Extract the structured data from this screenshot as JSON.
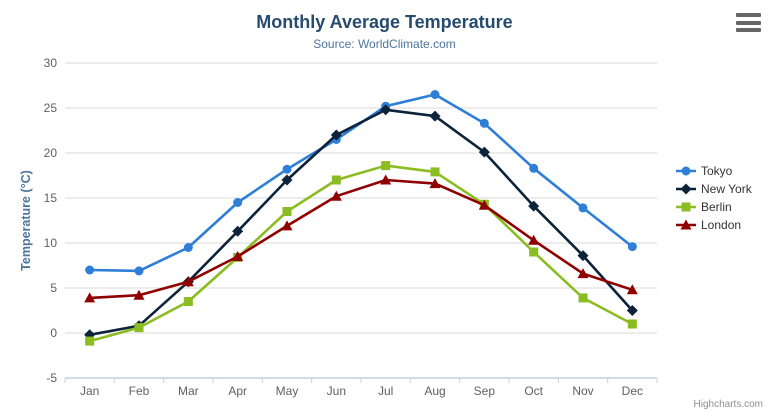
{
  "chart": {
    "title": "Monthly Average Temperature",
    "subtitle": "Source: WorldClimate.com",
    "credits": "Highcharts.com",
    "menu_icon": "hamburger-icon"
  },
  "colors": {
    "background": "#ffffff",
    "title": "#274b6d",
    "subtitle": "#4d759e",
    "axis_title": "#4d759e",
    "axis_label": "#606060",
    "grid_line": "#d8d8d8",
    "axis_line": "#c0d0e0",
    "legend_text": "#333333",
    "credits_text": "#909090",
    "menu_icon": "#666666"
  },
  "chart_data": {
    "type": "line",
    "title": "Monthly Average Temperature",
    "subtitle": "Source: WorldClimate.com",
    "categories": [
      "Jan",
      "Feb",
      "Mar",
      "Apr",
      "May",
      "Jun",
      "Jul",
      "Aug",
      "Sep",
      "Oct",
      "Nov",
      "Dec"
    ],
    "series": [
      {
        "name": "Tokyo",
        "color": "#2f7ed8",
        "marker": "circle",
        "values": [
          7.0,
          6.9,
          9.5,
          14.5,
          18.2,
          21.5,
          25.2,
          26.5,
          23.3,
          18.3,
          13.9,
          9.6
        ]
      },
      {
        "name": "New York",
        "color": "#0d233a",
        "marker": "diamond",
        "values": [
          -0.2,
          0.8,
          5.7,
          11.3,
          17.0,
          22.0,
          24.8,
          24.1,
          20.1,
          14.1,
          8.6,
          2.5
        ]
      },
      {
        "name": "Berlin",
        "color": "#8bbc21",
        "marker": "square",
        "values": [
          -0.9,
          0.6,
          3.5,
          8.4,
          13.5,
          17.0,
          18.6,
          17.9,
          14.3,
          9.0,
          3.9,
          1.0
        ]
      },
      {
        "name": "London",
        "color": "#910000",
        "marker": "triangle",
        "values": [
          3.9,
          4.2,
          5.7,
          8.5,
          11.9,
          15.2,
          17.0,
          16.6,
          14.2,
          10.3,
          6.6,
          4.8
        ]
      }
    ],
    "xlabel": "",
    "ylabel": "Temperature (°C)",
    "ylim": [
      -5,
      30
    ],
    "ytick_step": 5,
    "grid": true,
    "legend_position": "right"
  }
}
